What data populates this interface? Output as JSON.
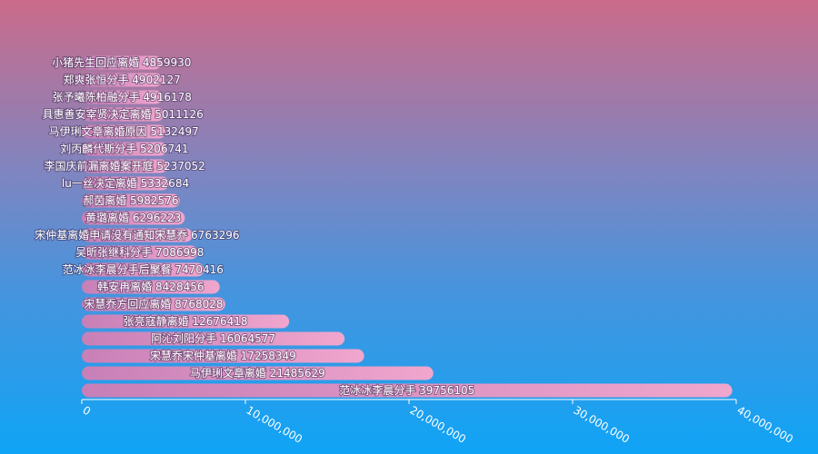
{
  "chart_data": {
    "type": "bar",
    "orientation": "horizontal",
    "categories": [
      "范冰冰李晨分手",
      "马伊琍文章离婚",
      "宋慧乔宋仲基离婚",
      "阿沁刘阳分手",
      "张亮寇静离婚",
      "宋慧乔方回应离婚",
      "韩安冉离婚",
      "范冰冰李晨分手后聚餐",
      "吴昕张继科分手",
      "宋仲基离婚申请没有通知宋慧乔",
      "黄璐离婚",
      "郝茵离婚",
      "lu一丝决定离婚",
      "李国庆前漏离婚案开庭",
      "刘丙麟代斯分手",
      "马伊琍文章离婚原因",
      "具惠善安宰贤决定离婚",
      "张予曦陈柏融分手",
      "郑爽张恒分手",
      "小猪先生回应离婚"
    ],
    "values": [
      39756105,
      21485629,
      17258349,
      16064577,
      12676418,
      8768028,
      8428456,
      7470416,
      7086998,
      6763296,
      6296223,
      5982576,
      5332684,
      5237052,
      5206741,
      5132497,
      5011126,
      4916178,
      4902127,
      4859930
    ],
    "labels": [
      "范冰冰李晨分手 39756105",
      "马伊琍文章离婚 21485629",
      "宋慧乔宋仲基离婚 17258349",
      "阿沁刘阳分手 16064577",
      "张亮寇静离婚 12676418",
      "宋慧乔方回应离婚 8768028",
      "韩安冉离婚 8428456",
      "范冰冰李晨分手后聚餐 7470416",
      "吴昕张继科分手 7086998",
      "宋仲基离婚申请没有通知宋慧乔 6763296",
      "黄璐离婚 6296223",
      "郝茵离婚 5982576",
      "lu一丝决定离婚 5332684",
      "李国庆前漏离婚案开庭 5237052",
      "刘丙麟代斯分手 5206741",
      "马伊琍文章离婚原因 5132497",
      "具惠善安宰贤决定离婚 5011126",
      "张予曦陈柏融分手 4916178",
      "郑爽张恒分手 4902127",
      "小猪先生回应离婚 4859930"
    ],
    "xlim": [
      0,
      40000000
    ],
    "xticks": [
      "0",
      "10,000,000",
      "20,000,000",
      "30,000,000",
      "40,000,000"
    ],
    "xtick_values": [
      0,
      10000000,
      20000000,
      30000000,
      40000000
    ],
    "title": "",
    "xlabel": "",
    "ylabel": "",
    "grid": false,
    "legend": "none",
    "colors": {
      "background_top": "#cb6b8a",
      "background_bottom": "#0fa4f6",
      "bar_left": "#c77fb7",
      "bar_right": "#f0a6cd",
      "text": "#ffffff"
    }
  }
}
